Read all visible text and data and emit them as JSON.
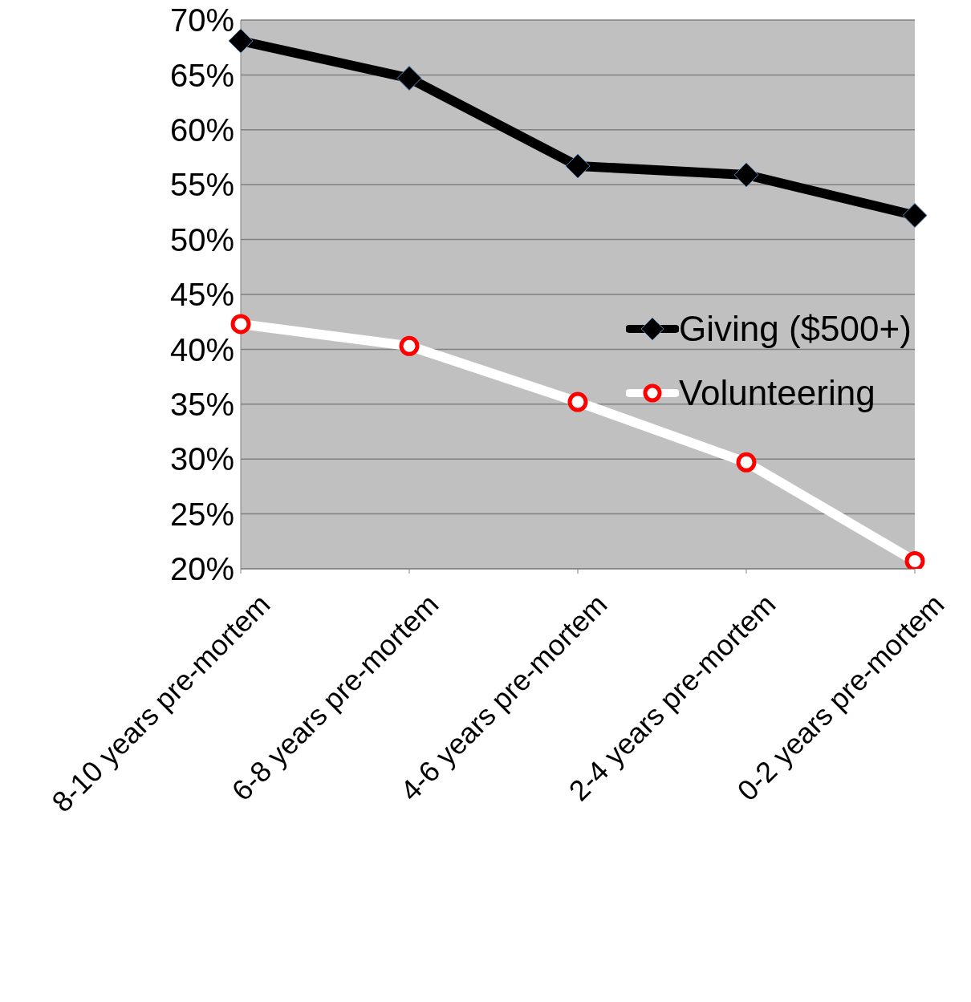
{
  "chart_data": {
    "type": "line",
    "categories": [
      "8-10 years pre-mortem",
      "6-8 years pre-mortem",
      "4-6 years pre-mortem",
      "2-4 years pre-mortem",
      "0-2 years pre-mortem"
    ],
    "series": [
      {
        "name": "Giving ($500+)",
        "color": "#000000",
        "marker": "diamond",
        "values": [
          68.1,
          64.7,
          56.7,
          55.9,
          52.2
        ]
      },
      {
        "name": "Volunteering",
        "color": "#ffffff",
        "marker": "circle",
        "values": [
          42.3,
          40.3,
          35.2,
          29.7,
          20.7
        ]
      }
    ],
    "ylim": [
      20,
      70
    ],
    "yticks": [
      {
        "value": 20,
        "label": "20%"
      },
      {
        "value": 25,
        "label": "25%"
      },
      {
        "value": 30,
        "label": "30%"
      },
      {
        "value": 35,
        "label": "35%"
      },
      {
        "value": 40,
        "label": "40%"
      },
      {
        "value": 45,
        "label": "45%"
      },
      {
        "value": 50,
        "label": "50%"
      },
      {
        "value": 55,
        "label": "55%"
      },
      {
        "value": 60,
        "label": "60%"
      },
      {
        "value": 65,
        "label": "65%"
      },
      {
        "value": 70,
        "label": "70%"
      }
    ],
    "grid": "y",
    "legend": "right"
  }
}
